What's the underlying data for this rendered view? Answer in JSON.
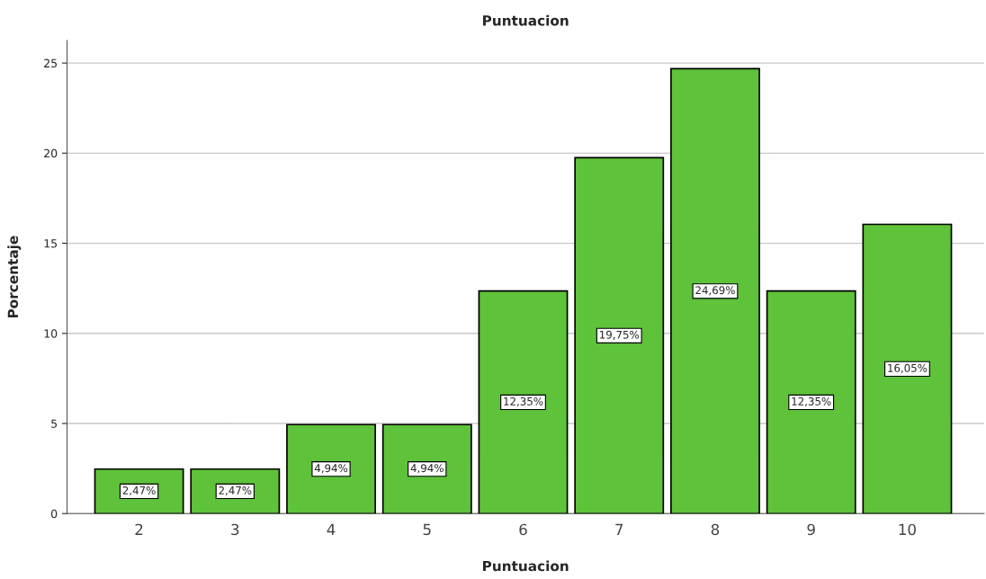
{
  "chart_data": {
    "type": "bar",
    "title": "Puntuacion",
    "xlabel": "Puntuacion",
    "ylabel": "Porcentaje",
    "categories": [
      "2",
      "3",
      "4",
      "5",
      "6",
      "7",
      "8",
      "9",
      "10"
    ],
    "values": [
      2.47,
      2.47,
      4.94,
      4.94,
      12.35,
      19.75,
      24.69,
      12.35,
      16.05
    ],
    "value_labels": [
      "2,47%",
      "2,47%",
      "4,94%",
      "4,94%",
      "12,35%",
      "19,75%",
      "24,69%",
      "12,35%",
      "16,05%"
    ],
    "color": "#5ec23a",
    "ylim": [
      0,
      26.25
    ],
    "yticks": [
      0,
      5,
      10,
      15,
      20,
      25
    ],
    "grid": "y",
    "legend": false
  }
}
